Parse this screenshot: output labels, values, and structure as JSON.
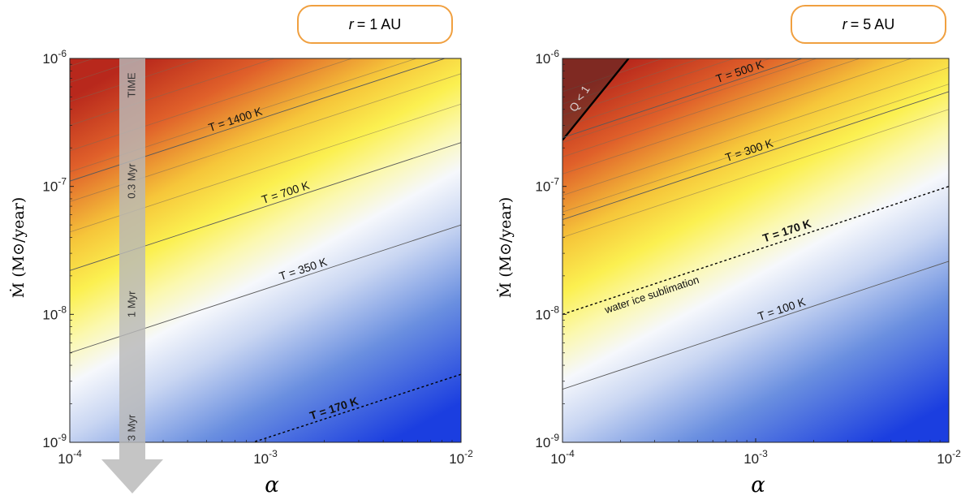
{
  "chart_data": [
    {
      "type": "heatmap",
      "title": "",
      "annotation_box": {
        "symbol": "r",
        "text": "= 1 AU"
      },
      "xlabel": "α",
      "ylabel": "Ṁ (M⊙/year)",
      "xscale": "log",
      "yscale": "log",
      "xlim": [
        0.0001,
        0.01
      ],
      "ylim": [
        1e-09,
        1e-06
      ],
      "x_ticks": [
        {
          "value": 0.0001,
          "base": "10",
          "exp": "-4"
        },
        {
          "value": 0.001,
          "base": "10",
          "exp": "-3"
        },
        {
          "value": 0.01,
          "base": "10",
          "exp": "-2"
        }
      ],
      "y_ticks": [
        {
          "value": 1e-09,
          "base": "10",
          "exp": "-9"
        },
        {
          "value": 1e-08,
          "base": "10",
          "exp": "-8"
        },
        {
          "value": 1e-07,
          "base": "10",
          "exp": "-7"
        },
        {
          "value": 1e-06,
          "base": "10",
          "exp": "-6"
        }
      ],
      "colormap": "temperature: blue (cold) → white → yellow → red (hot)",
      "isotherm_slope": "Ṁ ∝ α^0.5",
      "background_isotherms_mdot_at_alpha_min": [
        4.4e-08,
        7.6e-08,
        1.3e-07,
        1.9e-07,
        3e-07,
        4.6e-07,
        6.5e-07,
        8.7e-07,
        1.12e-06,
        1.4e-06,
        1.75e-06
      ],
      "labeled_isotherms": [
        {
          "label": "T = 1400 K",
          "mdot_at_alpha_min": 1.1e-07,
          "label_alpha": 0.00072,
          "style": "solid"
        },
        {
          "label": "T = 700 K",
          "mdot_at_alpha_min": 2.2e-08,
          "label_alpha": 0.0013,
          "style": "solid"
        },
        {
          "label": "T = 350 K",
          "mdot_at_alpha_min": 5e-09,
          "label_alpha": 0.0016,
          "style": "solid"
        },
        {
          "label": "T = 170 K",
          "mdot_at_alpha_min": 3.4e-10,
          "label_alpha": 0.0023,
          "style": "dashed"
        }
      ],
      "time_arrow": {
        "label": "TIME",
        "markers": [
          {
            "label": "0.3 Myr",
            "mdot": 1.1e-07
          },
          {
            "label": "1 Myr",
            "mdot": 1.2e-08
          },
          {
            "label": "3 Myr",
            "mdot": 1.3e-09
          }
        ]
      }
    },
    {
      "type": "heatmap",
      "title": "",
      "annotation_box": {
        "symbol": "r",
        "text": "= 5 AU"
      },
      "xlabel": "α",
      "ylabel": "Ṁ (M⊙/year)",
      "xscale": "log",
      "yscale": "log",
      "xlim": [
        0.0001,
        0.01
      ],
      "ylim": [
        1e-09,
        1e-06
      ],
      "x_ticks": [
        {
          "value": 0.0001,
          "base": "10",
          "exp": "-4"
        },
        {
          "value": 0.001,
          "base": "10",
          "exp": "-3"
        },
        {
          "value": 0.01,
          "base": "10",
          "exp": "-2"
        }
      ],
      "y_ticks": [
        {
          "value": 1e-09,
          "base": "10",
          "exp": "-9"
        },
        {
          "value": 1e-08,
          "base": "10",
          "exp": "-8"
        },
        {
          "value": 1e-07,
          "base": "10",
          "exp": "-7"
        },
        {
          "value": 1e-06,
          "base": "10",
          "exp": "-6"
        }
      ],
      "colormap": "temperature: blue (cold) → white → yellow → red (hot)",
      "isotherm_slope": "Ṁ ∝ α^0.5",
      "background_isotherms_mdot_at_alpha_min": [
        4e-08,
        6.3e-08,
        8.5e-08,
        1.25e-07,
        1.7e-07,
        2.2e-07,
        2.9e-07,
        3.6e-07,
        4.4e-07,
        5.5e-07
      ],
      "labeled_isotherms": [
        {
          "label": "T = 500 K",
          "mdot_at_alpha_min": 2.4e-07,
          "label_alpha": 0.00085,
          "style": "solid"
        },
        {
          "label": "T = 300 K",
          "mdot_at_alpha_min": 5.5e-08,
          "label_alpha": 0.00095,
          "style": "solid"
        },
        {
          "label": "T = 170 K",
          "mdot_at_alpha_min": 1e-08,
          "label_alpha": 0.0015,
          "style": "dashed",
          "bold": true,
          "label_above": true
        },
        {
          "label": "T = 100 K",
          "mdot_at_alpha_min": 2.6e-09,
          "label_alpha": 0.0014,
          "style": "solid"
        }
      ],
      "water_ice_label": "water ice sublimation",
      "gravitational_instability": {
        "label": "Q < 1",
        "boundary": [
          [
            0.0001,
            2.3e-07
          ],
          [
            0.00022,
            1e-06
          ]
        ]
      }
    }
  ]
}
